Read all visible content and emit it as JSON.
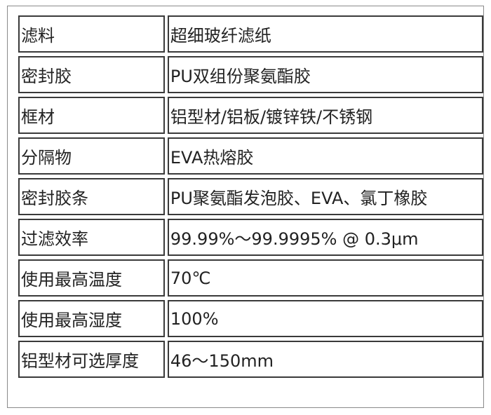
{
  "rows": [
    {
      "label": "滤料",
      "value": "超细玻纤滤纸"
    },
    {
      "label": "密封胶",
      "value": "PU双组份聚氨酯胶"
    },
    {
      "label": "框材",
      "value": "铝型材/铝板/镀锌铁/不锈钢"
    },
    {
      "label": "分隔物",
      "value": "EVA热熔胶"
    },
    {
      "label": "密封胶条",
      "value": "PU聚氨酯发泡胶、EVA、氯丁橡胶"
    },
    {
      "label": "过滤效率",
      "value": "99.99%～99.9995% @ 0.3μm"
    },
    {
      "label": "使用最高温度",
      "value": "70℃"
    },
    {
      "label": "使用最高湿度",
      "value": "100%"
    },
    {
      "label": "铝型材可选厚度",
      "value": "46～150mm"
    }
  ]
}
